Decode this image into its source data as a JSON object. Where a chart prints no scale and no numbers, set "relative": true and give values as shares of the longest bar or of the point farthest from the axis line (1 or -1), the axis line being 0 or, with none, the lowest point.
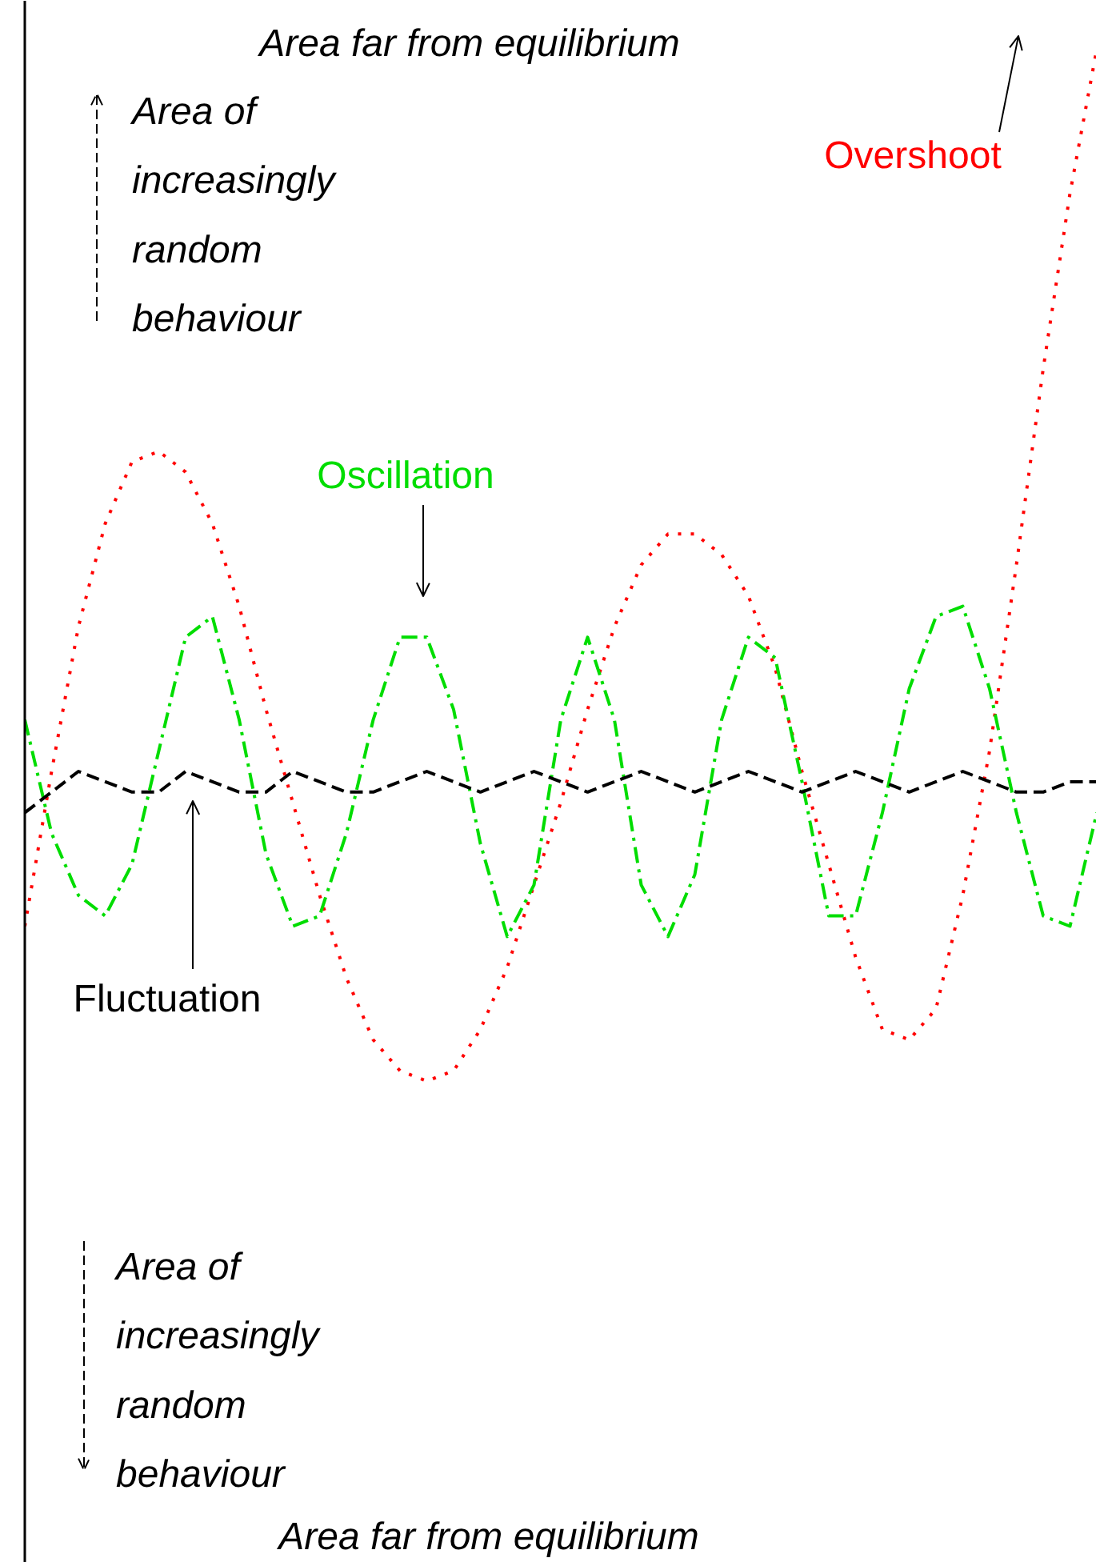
{
  "chart_data": {
    "type": "line",
    "relative": true,
    "categories": [
      null,
      null,
      null,
      null,
      null,
      null,
      null,
      null,
      null,
      null,
      null,
      null,
      null,
      null,
      null,
      null,
      null,
      null,
      null,
      null,
      null,
      null,
      null,
      null,
      null,
      null,
      null,
      null,
      null,
      null,
      null,
      null,
      null,
      null,
      null,
      null,
      null,
      null,
      null,
      null,
      null
    ],
    "series": [
      {
        "name": "Overshoot",
        "color": "#ff0000",
        "line_style": "dotted",
        "values": [
          0.15,
          0.3,
          0.44,
          0.54,
          0.6,
          0.61,
          0.59,
          0.54,
          0.46,
          0.36,
          0.27,
          0.18,
          0.1,
          0.04,
          0.01,
          0,
          0.01,
          0.05,
          0.11,
          0.19,
          0.27,
          0.36,
          0.44,
          0.5,
          0.53,
          0.53,
          0.51,
          0.47,
          0.4,
          0.3,
          0.21,
          0.12,
          0.05,
          0.04,
          0.07,
          0.18,
          0.32,
          0.5,
          0.69,
          0.86,
          1
        ]
      },
      {
        "name": "Oscillation",
        "color": "#00dd00",
        "line_style": "dashdot",
        "values": [
          0.35,
          0.24,
          0.18,
          0.16,
          0.21,
          0.32,
          0.43,
          0.45,
          0.35,
          0.22,
          0.15,
          0.16,
          0.24,
          0.35,
          0.43,
          0.43,
          0.36,
          0.23,
          0.14,
          0.19,
          0.35,
          0.43,
          0.35,
          0.19,
          0.14,
          0.2,
          0.35,
          0.43,
          0.41,
          0.29,
          0.16,
          0.16,
          0.26,
          0.38,
          0.45,
          0.46,
          0.38,
          0.26,
          0.16,
          0.15,
          0.26
        ]
      },
      {
        "name": "Fluctuation",
        "color": "#000000",
        "line_style": "dashed",
        "values": [
          0.26,
          0.28,
          0.3,
          0.29,
          0.28,
          0.28,
          0.3,
          0.29,
          0.28,
          0.28,
          0.3,
          0.29,
          0.28,
          0.28,
          0.29,
          0.3,
          0.29,
          0.28,
          0.29,
          0.3,
          0.29,
          0.28,
          0.29,
          0.3,
          0.29,
          0.28,
          0.29,
          0.3,
          0.29,
          0.28,
          0.29,
          0.3,
          0.29,
          0.28,
          0.29,
          0.3,
          0.29,
          0.28,
          0.28,
          0.29,
          0.29
        ]
      }
    ],
    "annotations": [
      "Area far from equilibrium",
      "Area of\nincreasingly\nrandom\nbehaviour",
      "Area of\nincreasingly\nrandom\nbehaviour",
      "Area far from equilibrium"
    ],
    "grid": false
  }
}
